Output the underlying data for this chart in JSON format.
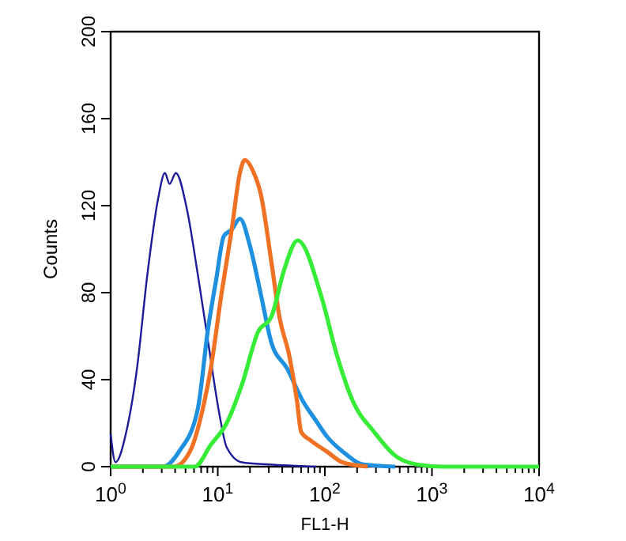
{
  "chart_data": {
    "type": "line",
    "xlabel": "FL1-H",
    "ylabel": "Counts",
    "log": "x",
    "xlim": [
      1,
      10000
    ],
    "ylim": [
      0,
      200
    ],
    "xticks": [
      {
        "value": 1,
        "label": "10$^{0}$"
      },
      {
        "value": 2,
        "label": null
      },
      {
        "value": 3,
        "label": null
      },
      {
        "value": 4,
        "label": null
      },
      {
        "value": 5,
        "label": null
      },
      {
        "value": 6,
        "label": null
      },
      {
        "value": 7,
        "label": null
      },
      {
        "value": 8,
        "label": null
      },
      {
        "value": 9,
        "label": null
      },
      {
        "value": 10,
        "label": "10$^{1}$"
      },
      {
        "value": 20,
        "label": null
      },
      {
        "value": 30,
        "label": null
      },
      {
        "value": 40,
        "label": null
      },
      {
        "value": 50,
        "label": null
      },
      {
        "value": 60,
        "label": null
      },
      {
        "value": 70,
        "label": null
      },
      {
        "value": 80,
        "label": null
      },
      {
        "value": 90,
        "label": null
      },
      {
        "value": 100,
        "label": "10$^{2}$"
      },
      {
        "value": 200,
        "label": null
      },
      {
        "value": 300,
        "label": null
      },
      {
        "value": 400,
        "label": null
      },
      {
        "value": 500,
        "label": null
      },
      {
        "value": 600,
        "label": null
      },
      {
        "value": 700,
        "label": null
      },
      {
        "value": 800,
        "label": null
      },
      {
        "value": 900,
        "label": null
      },
      {
        "value": 1000,
        "label": "10$^{3}$"
      },
      {
        "value": 2000,
        "label": null
      },
      {
        "value": 3000,
        "label": null
      },
      {
        "value": 4000,
        "label": null
      },
      {
        "value": 5000,
        "label": null
      },
      {
        "value": 6000,
        "label": null
      },
      {
        "value": 7000,
        "label": null
      },
      {
        "value": 8000,
        "label": null
      },
      {
        "value": 9000,
        "label": null
      },
      {
        "value": 10000,
        "label": "10$^{4}$"
      }
    ],
    "yticks": [
      0,
      40,
      80,
      120,
      160,
      200
    ],
    "marker": "none",
    "series": [
      {
        "color": "#1c1c9a",
        "x": [
          1,
          1.11,
          1.4,
          1.76,
          2.21,
          2.77,
          3.21,
          3.55,
          4.06,
          5.17,
          6.48,
          8.15,
          10.2,
          12.1,
          16.8,
          30,
          83
        ],
        "values": [
          15,
          2,
          16,
          45,
          89,
          123,
          135,
          130,
          135,
          118,
          89,
          57,
          26,
          9,
          2,
          1,
          0
        ]
      },
      {
        "color": "#1f90e0",
        "x": [
          1,
          3.1,
          4.36,
          6.48,
          8.15,
          9.67,
          11.4,
          13.5,
          16.1,
          20.1,
          25.3,
          31.7,
          44.6,
          62.6,
          83,
          104,
          146,
          230,
          453
        ],
        "values": [
          0,
          0,
          7,
          26,
          64,
          86,
          106,
          109,
          114,
          101,
          79,
          57,
          45,
          30,
          21,
          14,
          7,
          1,
          0
        ]
      },
      {
        "color": "#f07024",
        "x": [
          1,
          3.9,
          5.5,
          7.2,
          8.6,
          10.8,
          13.5,
          16.1,
          17.9,
          21.3,
          25.3,
          31.7,
          37.6,
          47,
          55,
          60,
          74,
          104,
          146,
          250
        ],
        "values": [
          0,
          0,
          7,
          26,
          45,
          79,
          109,
          135,
          141,
          136,
          125,
          94,
          69,
          50,
          30,
          16,
          12,
          7,
          2,
          0
        ]
      },
      {
        "color": "#36ec36",
        "x": [
          1,
          6.1,
          8.6,
          12.1,
          16.9,
          23.8,
          31.7,
          42,
          55.7,
          93,
          130,
          183,
          288,
          455,
          716,
          1250,
          10000
        ],
        "values": [
          0,
          0,
          10,
          20,
          38,
          62,
          69,
          91,
          104,
          78,
          51,
          30,
          16,
          5,
          1,
          0,
          0
        ]
      }
    ]
  }
}
